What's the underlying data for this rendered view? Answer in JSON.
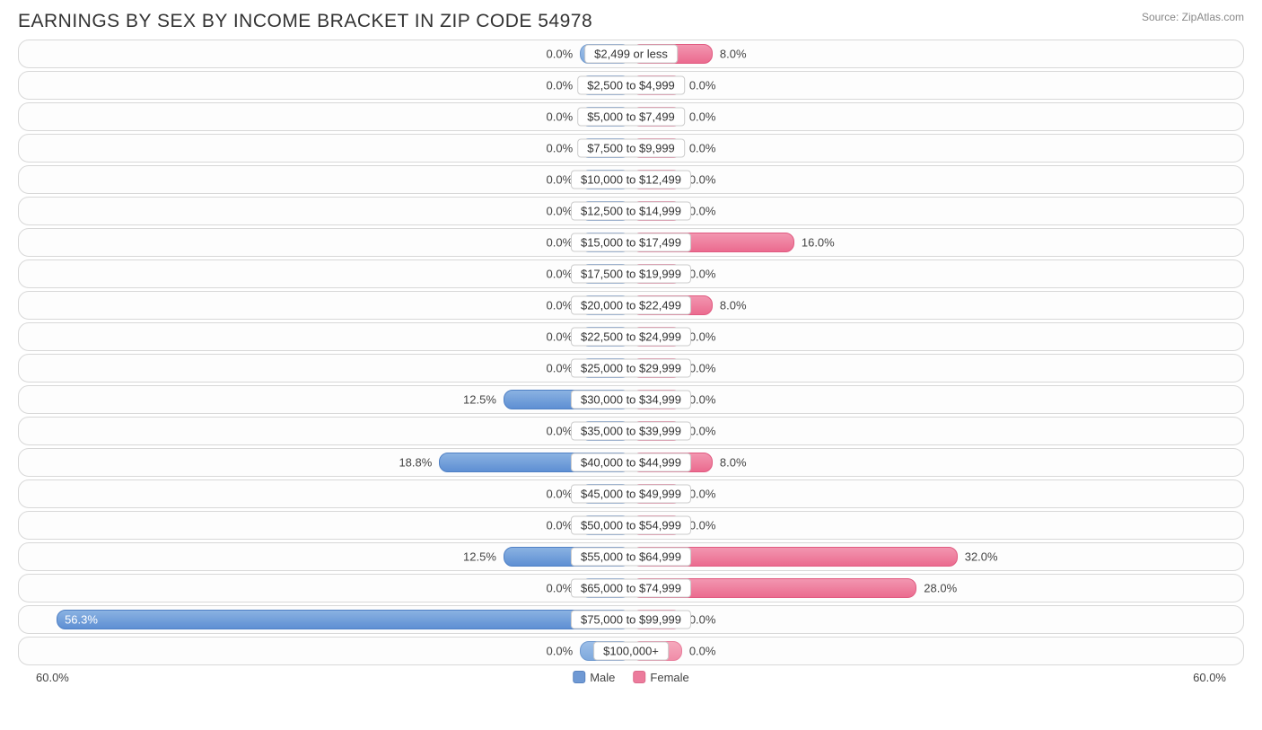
{
  "header": {
    "title": "EARNINGS BY SEX BY INCOME BRACKET IN ZIP CODE 54978",
    "source": "Source: ZipAtlas.com"
  },
  "chart": {
    "type": "diverging-bar",
    "axis_max_pct": 60.0,
    "axis_label_left": "60.0%",
    "axis_label_right": "60.0%",
    "min_bar_pct": 5.0,
    "colors": {
      "male_fill": "#7fa9dd",
      "male_nonzero_fill": "#5e8fd3",
      "female_fill": "#f08da8",
      "female_nonzero_fill": "#eb6b8f",
      "row_border": "#d8d8d8",
      "text": "#444444",
      "label_bg": "#ffffff",
      "label_border": "#cccccc"
    },
    "legend": {
      "male": "Male",
      "female": "Female"
    },
    "rows": [
      {
        "category": "$2,499 or less",
        "male_pct": 0.0,
        "female_pct": 8.0,
        "male_label": "0.0%",
        "female_label": "8.0%"
      },
      {
        "category": "$2,500 to $4,999",
        "male_pct": 0.0,
        "female_pct": 0.0,
        "male_label": "0.0%",
        "female_label": "0.0%"
      },
      {
        "category": "$5,000 to $7,499",
        "male_pct": 0.0,
        "female_pct": 0.0,
        "male_label": "0.0%",
        "female_label": "0.0%"
      },
      {
        "category": "$7,500 to $9,999",
        "male_pct": 0.0,
        "female_pct": 0.0,
        "male_label": "0.0%",
        "female_label": "0.0%"
      },
      {
        "category": "$10,000 to $12,499",
        "male_pct": 0.0,
        "female_pct": 0.0,
        "male_label": "0.0%",
        "female_label": "0.0%"
      },
      {
        "category": "$12,500 to $14,999",
        "male_pct": 0.0,
        "female_pct": 0.0,
        "male_label": "0.0%",
        "female_label": "0.0%"
      },
      {
        "category": "$15,000 to $17,499",
        "male_pct": 0.0,
        "female_pct": 16.0,
        "male_label": "0.0%",
        "female_label": "16.0%"
      },
      {
        "category": "$17,500 to $19,999",
        "male_pct": 0.0,
        "female_pct": 0.0,
        "male_label": "0.0%",
        "female_label": "0.0%"
      },
      {
        "category": "$20,000 to $22,499",
        "male_pct": 0.0,
        "female_pct": 8.0,
        "male_label": "0.0%",
        "female_label": "8.0%"
      },
      {
        "category": "$22,500 to $24,999",
        "male_pct": 0.0,
        "female_pct": 0.0,
        "male_label": "0.0%",
        "female_label": "0.0%"
      },
      {
        "category": "$25,000 to $29,999",
        "male_pct": 0.0,
        "female_pct": 0.0,
        "male_label": "0.0%",
        "female_label": "0.0%"
      },
      {
        "category": "$30,000 to $34,999",
        "male_pct": 12.5,
        "female_pct": 0.0,
        "male_label": "12.5%",
        "female_label": "0.0%"
      },
      {
        "category": "$35,000 to $39,999",
        "male_pct": 0.0,
        "female_pct": 0.0,
        "male_label": "0.0%",
        "female_label": "0.0%"
      },
      {
        "category": "$40,000 to $44,999",
        "male_pct": 18.8,
        "female_pct": 8.0,
        "male_label": "18.8%",
        "female_label": "8.0%"
      },
      {
        "category": "$45,000 to $49,999",
        "male_pct": 0.0,
        "female_pct": 0.0,
        "male_label": "0.0%",
        "female_label": "0.0%"
      },
      {
        "category": "$50,000 to $54,999",
        "male_pct": 0.0,
        "female_pct": 0.0,
        "male_label": "0.0%",
        "female_label": "0.0%"
      },
      {
        "category": "$55,000 to $64,999",
        "male_pct": 12.5,
        "female_pct": 32.0,
        "male_label": "12.5%",
        "female_label": "32.0%"
      },
      {
        "category": "$65,000 to $74,999",
        "male_pct": 0.0,
        "female_pct": 28.0,
        "male_label": "0.0%",
        "female_label": "28.0%"
      },
      {
        "category": "$75,000 to $99,999",
        "male_pct": 56.3,
        "female_pct": 0.0,
        "male_label": "56.3%",
        "female_label": "0.0%"
      },
      {
        "category": "$100,000+",
        "male_pct": 0.0,
        "female_pct": 0.0,
        "male_label": "0.0%",
        "female_label": "0.0%"
      }
    ]
  }
}
